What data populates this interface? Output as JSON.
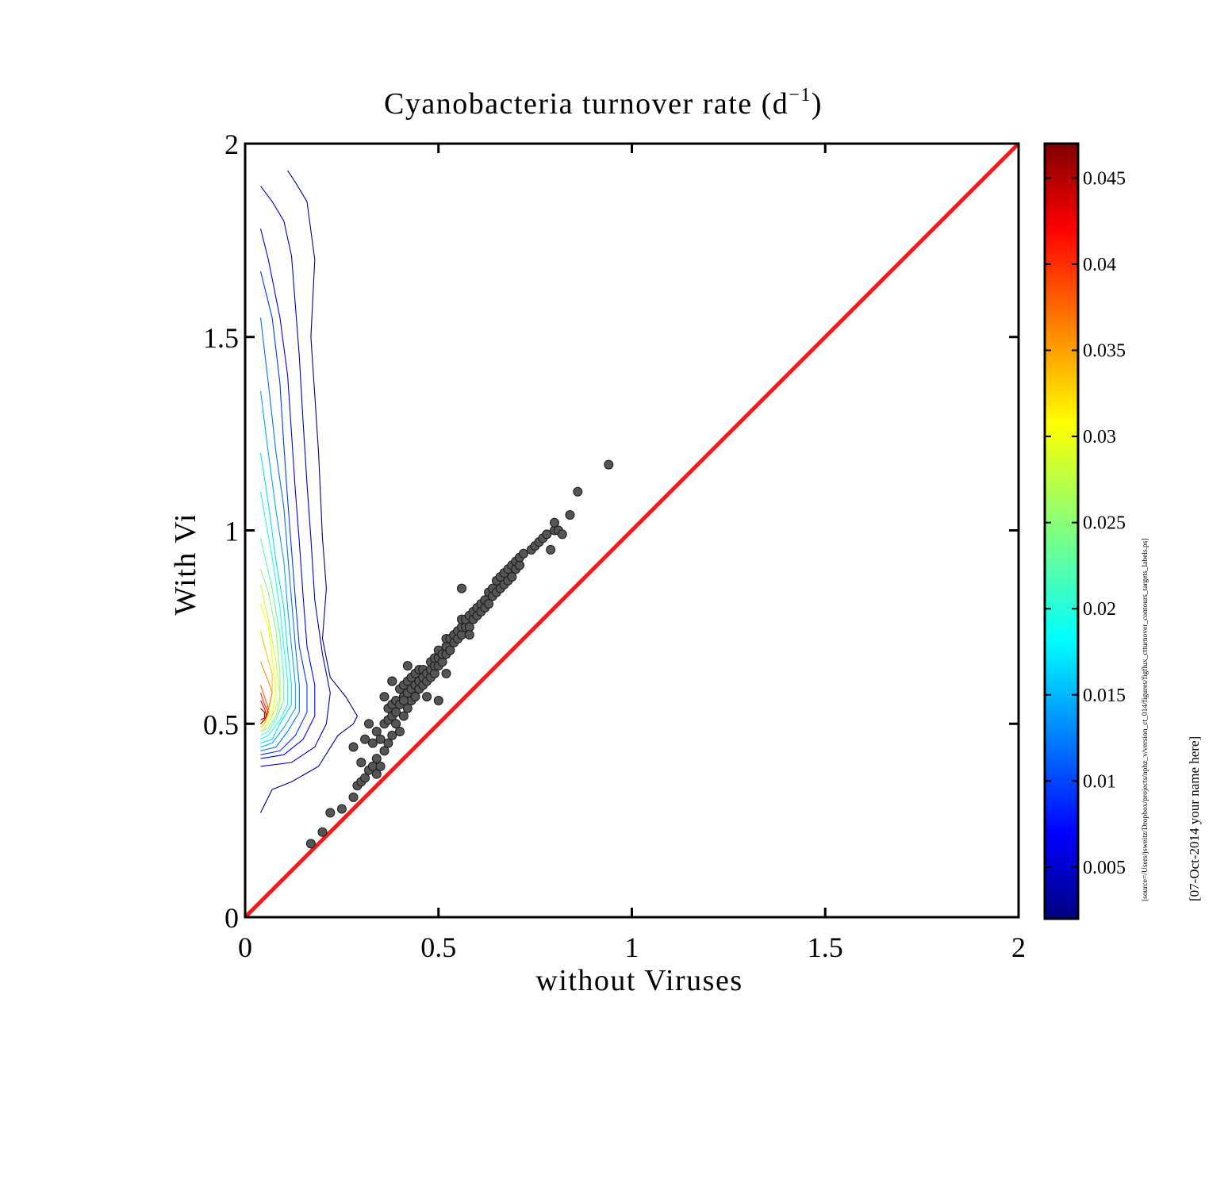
{
  "chart_data": {
    "type": "scatter",
    "title": "Cyanobacteria turnover rate (d",
    "title_superscript": "−1",
    "title_close": ")",
    "xlabel": "without Viruses",
    "ylabel": "With Viruses",
    "xlim": [
      0,
      2
    ],
    "ylim": [
      0,
      2
    ],
    "x_ticks": [
      "0",
      "0.5",
      "1",
      "1.5",
      "2"
    ],
    "y_ticks": [
      "0",
      "0.5",
      "1",
      "1.5",
      "2"
    ],
    "grid": false,
    "reference_line": {
      "x": [
        0,
        2
      ],
      "y": [
        0,
        2
      ],
      "color": "#ee1c1c"
    },
    "points": {
      "color": "#555555",
      "x": [
        0.17,
        0.2,
        0.22,
        0.25,
        0.28,
        0.28,
        0.29,
        0.3,
        0.3,
        0.31,
        0.31,
        0.32,
        0.32,
        0.33,
        0.33,
        0.34,
        0.34,
        0.34,
        0.35,
        0.35,
        0.36,
        0.36,
        0.36,
        0.37,
        0.37,
        0.37,
        0.38,
        0.38,
        0.38,
        0.38,
        0.39,
        0.39,
        0.39,
        0.4,
        0.4,
        0.4,
        0.41,
        0.41,
        0.41,
        0.42,
        0.42,
        0.42,
        0.43,
        0.43,
        0.43,
        0.44,
        0.44,
        0.44,
        0.45,
        0.45,
        0.45,
        0.46,
        0.46,
        0.46,
        0.47,
        0.47,
        0.48,
        0.48,
        0.48,
        0.49,
        0.49,
        0.49,
        0.5,
        0.5,
        0.5,
        0.51,
        0.51,
        0.52,
        0.52,
        0.52,
        0.53,
        0.53,
        0.54,
        0.54,
        0.55,
        0.55,
        0.56,
        0.56,
        0.56,
        0.57,
        0.57,
        0.58,
        0.58,
        0.59,
        0.59,
        0.6,
        0.6,
        0.61,
        0.61,
        0.62,
        0.62,
        0.63,
        0.63,
        0.64,
        0.64,
        0.65,
        0.65,
        0.66,
        0.66,
        0.67,
        0.67,
        0.68,
        0.68,
        0.69,
        0.69,
        0.7,
        0.7,
        0.71,
        0.71,
        0.72,
        0.74,
        0.75,
        0.76,
        0.77,
        0.78,
        0.79,
        0.8,
        0.8,
        0.81,
        0.82,
        0.84,
        0.86,
        0.94,
        0.56,
        0.42,
        0.38,
        0.41,
        0.47,
        0.5,
        0.58,
        0.52
      ],
      "y": [
        0.19,
        0.22,
        0.27,
        0.28,
        0.31,
        0.44,
        0.34,
        0.35,
        0.4,
        0.36,
        0.46,
        0.38,
        0.5,
        0.39,
        0.45,
        0.37,
        0.41,
        0.48,
        0.39,
        0.46,
        0.43,
        0.5,
        0.57,
        0.45,
        0.51,
        0.54,
        0.47,
        0.52,
        0.55,
        0.61,
        0.5,
        0.53,
        0.56,
        0.48,
        0.55,
        0.59,
        0.52,
        0.57,
        0.6,
        0.54,
        0.58,
        0.61,
        0.56,
        0.59,
        0.62,
        0.57,
        0.6,
        0.63,
        0.59,
        0.61,
        0.64,
        0.6,
        0.62,
        0.64,
        0.61,
        0.63,
        0.62,
        0.64,
        0.66,
        0.63,
        0.65,
        0.67,
        0.65,
        0.67,
        0.69,
        0.66,
        0.68,
        0.68,
        0.7,
        0.72,
        0.69,
        0.72,
        0.71,
        0.73,
        0.72,
        0.74,
        0.73,
        0.75,
        0.77,
        0.75,
        0.77,
        0.75,
        0.78,
        0.77,
        0.79,
        0.78,
        0.8,
        0.79,
        0.81,
        0.8,
        0.82,
        0.81,
        0.84,
        0.83,
        0.85,
        0.84,
        0.87,
        0.85,
        0.88,
        0.86,
        0.89,
        0.87,
        0.9,
        0.88,
        0.91,
        0.9,
        0.92,
        0.91,
        0.93,
        0.94,
        0.95,
        0.96,
        0.97,
        0.98,
        0.99,
        0.95,
        1.0,
        1.02,
        1.0,
        0.99,
        1.04,
        1.1,
        1.17,
        0.85,
        0.65,
        0.61,
        0.56,
        0.57,
        0.56,
        0.73,
        0.63
      ]
    },
    "contours": {
      "min": 0.002,
      "max": 0.047,
      "lines": [
        {
          "level": 0.0025,
          "x": [
            0.04,
            0.07,
            0.12,
            0.19,
            0.24,
            0.28,
            0.29,
            0.26,
            0.22,
            0.2,
            0.21,
            0.2,
            0.19,
            0.18,
            0.17,
            0.18,
            0.16,
            0.13,
            0.11
          ],
          "y": [
            0.27,
            0.33,
            0.35,
            0.39,
            0.47,
            0.5,
            0.52,
            0.57,
            0.62,
            0.72,
            0.85,
            0.98,
            1.2,
            1.35,
            1.5,
            1.7,
            1.85,
            1.9,
            1.93
          ]
        },
        {
          "level": 0.005,
          "x": [
            0.04,
            0.12,
            0.18,
            0.21,
            0.22,
            0.2,
            0.18,
            0.17,
            0.16,
            0.15,
            0.14,
            0.13,
            0.12,
            0.1,
            0.07,
            0.04
          ],
          "y": [
            0.39,
            0.4,
            0.44,
            0.5,
            0.58,
            0.68,
            0.82,
            0.98,
            1.12,
            1.28,
            1.45,
            1.58,
            1.71,
            1.8,
            1.85,
            1.89
          ]
        },
        {
          "level": 0.0075,
          "x": [
            0.04,
            0.1,
            0.15,
            0.18,
            0.18,
            0.16,
            0.15,
            0.14,
            0.13,
            0.12,
            0.11,
            0.09,
            0.06,
            0.04
          ],
          "y": [
            0.41,
            0.42,
            0.46,
            0.52,
            0.6,
            0.7,
            0.83,
            0.97,
            1.1,
            1.25,
            1.4,
            1.55,
            1.7,
            1.78
          ]
        },
        {
          "level": 0.01,
          "x": [
            0.04,
            0.09,
            0.13,
            0.16,
            0.16,
            0.14,
            0.13,
            0.12,
            0.11,
            0.1,
            0.09,
            0.07,
            0.04
          ],
          "y": [
            0.42,
            0.43,
            0.47,
            0.53,
            0.6,
            0.7,
            0.82,
            0.95,
            1.08,
            1.22,
            1.38,
            1.55,
            1.67
          ]
        },
        {
          "level": 0.0125,
          "x": [
            0.04,
            0.08,
            0.11,
            0.14,
            0.14,
            0.13,
            0.12,
            0.11,
            0.1,
            0.08,
            0.06,
            0.04
          ],
          "y": [
            0.43,
            0.44,
            0.48,
            0.53,
            0.6,
            0.7,
            0.82,
            0.94,
            1.06,
            1.2,
            1.38,
            1.55
          ]
        },
        {
          "level": 0.015,
          "x": [
            0.04,
            0.07,
            0.1,
            0.13,
            0.13,
            0.12,
            0.11,
            0.1,
            0.08,
            0.06,
            0.04
          ],
          "y": [
            0.44,
            0.45,
            0.49,
            0.54,
            0.6,
            0.7,
            0.8,
            0.92,
            1.05,
            1.2,
            1.36
          ]
        },
        {
          "level": 0.0175,
          "x": [
            0.04,
            0.07,
            0.09,
            0.12,
            0.12,
            0.11,
            0.1,
            0.08,
            0.06,
            0.04
          ],
          "y": [
            0.45,
            0.46,
            0.5,
            0.55,
            0.6,
            0.69,
            0.8,
            0.92,
            1.07,
            1.2
          ]
        },
        {
          "level": 0.02,
          "x": [
            0.04,
            0.06,
            0.09,
            0.11,
            0.11,
            0.1,
            0.09,
            0.07,
            0.04
          ],
          "y": [
            0.46,
            0.47,
            0.51,
            0.55,
            0.61,
            0.7,
            0.8,
            0.93,
            1.1
          ]
        },
        {
          "level": 0.0225,
          "x": [
            0.04,
            0.06,
            0.08,
            0.1,
            0.1,
            0.09,
            0.07,
            0.04
          ],
          "y": [
            0.47,
            0.48,
            0.51,
            0.56,
            0.62,
            0.73,
            0.85,
            0.98
          ]
        },
        {
          "level": 0.025,
          "x": [
            0.04,
            0.06,
            0.08,
            0.09,
            0.09,
            0.08,
            0.06,
            0.04
          ],
          "y": [
            0.48,
            0.49,
            0.52,
            0.56,
            0.63,
            0.74,
            0.84,
            0.9
          ]
        },
        {
          "level": 0.0275,
          "x": [
            0.04,
            0.05,
            0.07,
            0.09,
            0.08,
            0.06,
            0.04
          ],
          "y": [
            0.48,
            0.49,
            0.52,
            0.57,
            0.66,
            0.77,
            0.86
          ]
        },
        {
          "level": 0.03,
          "x": [
            0.04,
            0.05,
            0.07,
            0.08,
            0.07,
            0.06,
            0.04
          ],
          "y": [
            0.49,
            0.5,
            0.53,
            0.58,
            0.67,
            0.75,
            0.81
          ]
        },
        {
          "level": 0.0325,
          "x": [
            0.04,
            0.05,
            0.06,
            0.07,
            0.07,
            0.05,
            0.04
          ],
          "y": [
            0.49,
            0.5,
            0.53,
            0.58,
            0.63,
            0.7,
            0.74
          ]
        },
        {
          "level": 0.035,
          "x": [
            0.04,
            0.05,
            0.06,
            0.07,
            0.06,
            0.04
          ],
          "y": [
            0.5,
            0.51,
            0.54,
            0.58,
            0.61,
            0.66
          ]
        },
        {
          "level": 0.0375,
          "x": [
            0.04,
            0.05,
            0.06,
            0.05,
            0.04
          ],
          "y": [
            0.5,
            0.51,
            0.54,
            0.57,
            0.6
          ]
        },
        {
          "level": 0.04,
          "x": [
            0.04,
            0.05,
            0.06,
            0.05,
            0.04
          ],
          "y": [
            0.5,
            0.51,
            0.53,
            0.55,
            0.58
          ]
        },
        {
          "level": 0.0425,
          "x": [
            0.04,
            0.05,
            0.055,
            0.05,
            0.04
          ],
          "y": [
            0.5,
            0.51,
            0.52,
            0.54,
            0.56
          ]
        },
        {
          "level": 0.045,
          "x": [
            0.04,
            0.05,
            0.05,
            0.04
          ],
          "y": [
            0.51,
            0.515,
            0.53,
            0.54
          ]
        }
      ]
    },
    "colorbar": {
      "min": 0.002,
      "max": 0.047,
      "ticks": [
        0.005,
        0.01,
        0.015,
        0.02,
        0.025,
        0.03,
        0.035,
        0.04,
        0.045
      ],
      "tick_labels": [
        "0.005",
        "0.01",
        "0.015",
        "0.02",
        "0.025",
        "0.03",
        "0.035",
        "0.04",
        "0.045"
      ],
      "colormap": "jet"
    },
    "source_note": "[source=/Users/jsweitz/Dropbox/projects/nphz_v/version_ct_014/figures/figflux_ctturnover_contours_targets_labels.ps]",
    "date_note": "[07-Oct-2014 your name here]"
  }
}
